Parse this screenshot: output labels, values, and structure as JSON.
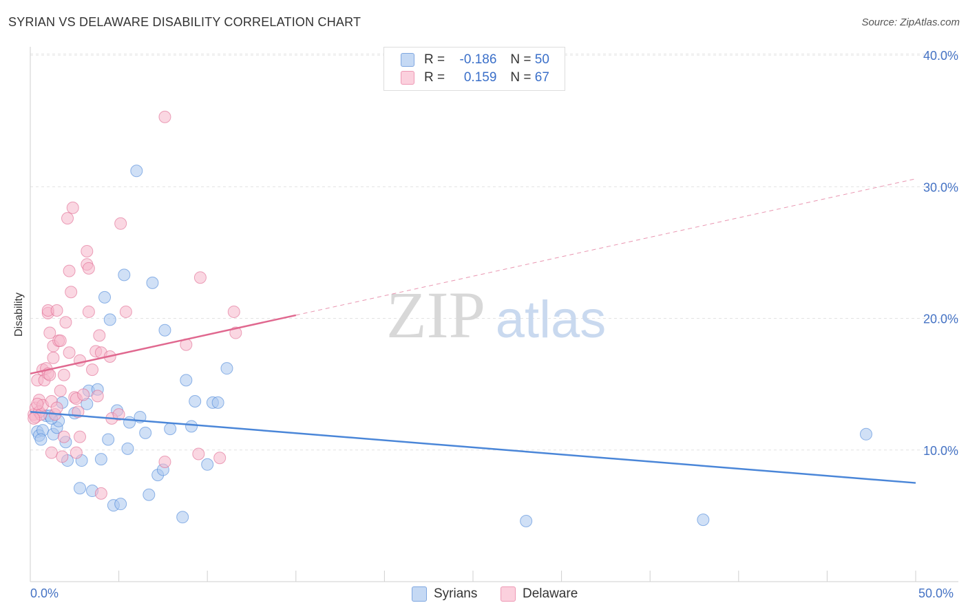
{
  "title": "SYRIAN VS DELAWARE DISABILITY CORRELATION CHART",
  "source": "Source: ZipAtlas.com",
  "watermark": {
    "zip": "ZIP",
    "atlas": "atlas"
  },
  "legend": {
    "rows": [
      {
        "r_label": "R =",
        "r_value": "-0.186",
        "n_label": "N =",
        "n_value": "50",
        "color": "#a9c6ef"
      },
      {
        "r_label": "R =",
        "r_value": "0.159",
        "n_label": "N =",
        "n_value": "67",
        "color": "#f6b7cb"
      }
    ]
  },
  "bottom_legend": [
    {
      "label": "Syrians",
      "color": "#a9c6ef"
    },
    {
      "label": "Delaware",
      "color": "#f6b7cb"
    }
  ],
  "chart_data": {
    "type": "scatter",
    "title": "SYRIAN VS DELAWARE DISABILITY CORRELATION CHART",
    "xlabel": "",
    "ylabel": "Disability",
    "xlim": [
      0,
      50
    ],
    "ylim": [
      0,
      40
    ],
    "x_tick_labels": [
      "0.0%",
      "50.0%"
    ],
    "y_ticks": [
      10,
      20,
      30,
      40
    ],
    "y_tick_labels": [
      "10.0%",
      "20.0%",
      "30.0%",
      "40.0%"
    ],
    "grid": true,
    "series": [
      {
        "name": "Syrians",
        "color": "#4a86d8",
        "fill": "#a9c6ef",
        "trend": {
          "x0": 0,
          "y0": 12.9,
          "x1": 50,
          "y1": 7.5,
          "solid_to": 50
        },
        "points": [
          [
            0.4,
            11.4
          ],
          [
            0.5,
            11.1
          ],
          [
            0.7,
            11.5
          ],
          [
            0.9,
            12.6
          ],
          [
            1.1,
            12.6
          ],
          [
            1.3,
            11.2
          ],
          [
            1.5,
            11.7
          ],
          [
            1.6,
            12.2
          ],
          [
            1.8,
            13.6
          ],
          [
            2.0,
            10.6
          ],
          [
            2.1,
            9.2
          ],
          [
            2.5,
            12.8
          ],
          [
            2.9,
            9.2
          ],
          [
            3.2,
            13.5
          ],
          [
            3.3,
            14.5
          ],
          [
            3.5,
            6.9
          ],
          [
            3.8,
            14.6
          ],
          [
            4.0,
            9.3
          ],
          [
            4.2,
            21.6
          ],
          [
            4.4,
            10.8
          ],
          [
            4.5,
            19.9
          ],
          [
            4.7,
            5.8
          ],
          [
            4.9,
            13.0
          ],
          [
            5.1,
            5.9
          ],
          [
            5.3,
            23.3
          ],
          [
            5.5,
            10.1
          ],
          [
            5.6,
            12.1
          ],
          [
            6.0,
            31.2
          ],
          [
            6.2,
            12.5
          ],
          [
            6.5,
            11.3
          ],
          [
            6.7,
            6.6
          ],
          [
            6.9,
            22.7
          ],
          [
            7.2,
            8.1
          ],
          [
            7.5,
            8.5
          ],
          [
            7.6,
            19.1
          ],
          [
            7.9,
            11.6
          ],
          [
            8.6,
            4.9
          ],
          [
            8.8,
            15.3
          ],
          [
            9.1,
            11.8
          ],
          [
            9.3,
            13.7
          ],
          [
            10.0,
            8.9
          ],
          [
            10.3,
            13.6
          ],
          [
            10.6,
            13.6
          ],
          [
            11.1,
            16.2
          ],
          [
            2.8,
            7.1
          ],
          [
            1.2,
            12.4
          ],
          [
            0.6,
            10.8
          ],
          [
            28.0,
            4.6
          ],
          [
            38.0,
            4.7
          ],
          [
            47.2,
            11.2
          ]
        ]
      },
      {
        "name": "Delaware",
        "color": "#e0688f",
        "fill": "#f6b7cb",
        "trend": {
          "x0": 0,
          "y0": 15.8,
          "x1": 50,
          "y1": 30.6,
          "solid_to": 15
        },
        "points": [
          [
            0.2,
            12.7
          ],
          [
            0.3,
            12.5
          ],
          [
            0.3,
            13.2
          ],
          [
            0.4,
            15.3
          ],
          [
            0.5,
            12.9
          ],
          [
            0.5,
            13.8
          ],
          [
            0.6,
            12.7
          ],
          [
            0.7,
            16.1
          ],
          [
            0.7,
            13.4
          ],
          [
            0.8,
            15.3
          ],
          [
            0.9,
            16.2
          ],
          [
            1.0,
            20.4
          ],
          [
            1.0,
            20.6
          ],
          [
            1.0,
            15.8
          ],
          [
            1.1,
            18.9
          ],
          [
            1.1,
            15.7
          ],
          [
            1.2,
            13.7
          ],
          [
            1.2,
            9.8
          ],
          [
            1.3,
            17.9
          ],
          [
            1.3,
            17.0
          ],
          [
            1.4,
            12.7
          ],
          [
            1.5,
            20.6
          ],
          [
            1.5,
            13.2
          ],
          [
            1.6,
            18.3
          ],
          [
            1.7,
            14.5
          ],
          [
            1.7,
            18.3
          ],
          [
            1.8,
            9.5
          ],
          [
            1.9,
            15.7
          ],
          [
            1.9,
            11.0
          ],
          [
            2.0,
            19.7
          ],
          [
            2.1,
            27.6
          ],
          [
            2.2,
            23.6
          ],
          [
            2.2,
            17.4
          ],
          [
            2.3,
            22.0
          ],
          [
            2.4,
            28.4
          ],
          [
            2.5,
            14.0
          ],
          [
            2.6,
            13.9
          ],
          [
            2.6,
            9.8
          ],
          [
            2.7,
            12.9
          ],
          [
            2.8,
            11.0
          ],
          [
            2.8,
            16.8
          ],
          [
            3.0,
            14.2
          ],
          [
            3.2,
            24.1
          ],
          [
            3.2,
            25.1
          ],
          [
            3.3,
            20.5
          ],
          [
            3.3,
            23.8
          ],
          [
            3.5,
            16.1
          ],
          [
            3.7,
            17.5
          ],
          [
            3.8,
            14.1
          ],
          [
            3.9,
            18.7
          ],
          [
            4.0,
            17.4
          ],
          [
            4.0,
            6.7
          ],
          [
            4.5,
            17.1
          ],
          [
            4.6,
            12.4
          ],
          [
            5.0,
            12.7
          ],
          [
            5.1,
            27.2
          ],
          [
            5.4,
            20.5
          ],
          [
            7.6,
            35.3
          ],
          [
            7.6,
            9.1
          ],
          [
            8.8,
            18.0
          ],
          [
            9.5,
            9.7
          ],
          [
            9.6,
            23.1
          ],
          [
            10.7,
            9.4
          ],
          [
            11.5,
            20.5
          ],
          [
            11.6,
            18.9
          ],
          [
            0.2,
            12.4
          ],
          [
            0.4,
            13.5
          ]
        ]
      }
    ]
  }
}
